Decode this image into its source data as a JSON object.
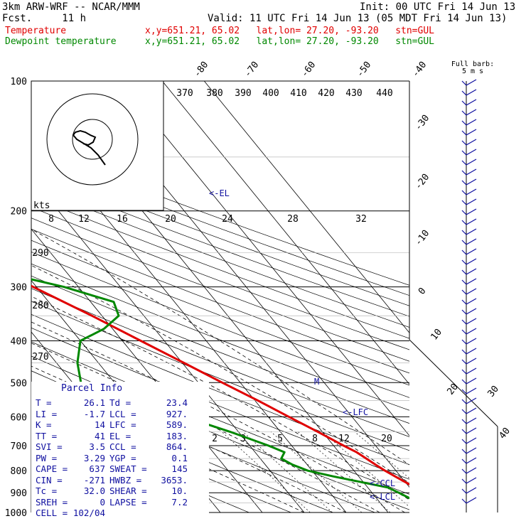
{
  "header": {
    "model": "3km ARW-WRF -- NCAR/MMM",
    "init": "Init: 00 UTC Fri 14 Jun 13",
    "fcst": "Fcst.     11 h",
    "valid": "Valid: 11 UTC Fri 14 Jun 13 (05 MDT Fri 14 Jun 13)",
    "temp_name": "Temperature",
    "temp_info": "x,y=651.21, 65.02   lat,lon= 27.20, -93.20   stn=GUL",
    "dew_name": "Dewpoint temperature",
    "dew_info": "x,y=651.21, 65.02   lat,lon= 27.20, -93.20   stn=GUL"
  },
  "barb_title": "Full barb:",
  "barb_unit": "5 m s",
  "hodo_label": "kts",
  "hodo_ring_labels": [
    "8",
    "12",
    "16",
    "20",
    "24",
    "28",
    "32"
  ],
  "colors": {
    "temperature": "#e00000",
    "dewpoint": "#008800",
    "labels": "#1010a0"
  },
  "chart_data": {
    "type": "line",
    "pressure_levels": [
      100,
      200,
      300,
      400,
      500,
      600,
      700,
      800,
      900,
      1000
    ],
    "isotherm_labels": [
      "-80",
      "-70",
      "-60",
      "-50",
      "-40",
      "-30",
      "-20",
      "-10",
      "0",
      "10",
      "20",
      "30",
      "40"
    ],
    "theta_labels": [
      "370",
      "380",
      "390",
      "400",
      "410",
      "420",
      "430",
      "440",
      "290",
      "280",
      "270"
    ],
    "mixing_ratio_labels": [
      "2",
      "3",
      "5",
      "8",
      "12",
      "20"
    ],
    "level_labels": {
      "el": "<-EL",
      "lfc": "<-LFC",
      "ccl": "<-CCL",
      "lcl": "<-LCL",
      "m": "M"
    },
    "series": [
      {
        "name": "Temperature",
        "points": [
          [
            1000,
            26.1
          ],
          [
            975,
            25.0
          ],
          [
            950,
            23.8
          ],
          [
            925,
            22.8
          ],
          [
            900,
            22.2
          ],
          [
            875,
            21.3
          ],
          [
            850,
            20.0
          ],
          [
            825,
            18.7
          ],
          [
            800,
            17.4
          ],
          [
            775,
            16.3
          ],
          [
            750,
            15.3
          ],
          [
            725,
            14.2
          ],
          [
            700,
            12.4
          ],
          [
            650,
            8.9
          ],
          [
            600,
            4.9
          ],
          [
            550,
            0.7
          ],
          [
            500,
            -4.3
          ],
          [
            450,
            -9.6
          ],
          [
            400,
            -15.6
          ],
          [
            350,
            -22.4
          ],
          [
            300,
            -30.8
          ],
          [
            250,
            -40.5
          ],
          [
            200,
            -52.0
          ],
          [
            175,
            -58.7
          ],
          [
            150,
            -67.5
          ],
          [
            125,
            -72.5
          ],
          [
            100,
            -73.0
          ]
        ]
      },
      {
        "name": "Dewpoint temperature",
        "points": [
          [
            1000,
            23.4
          ],
          [
            975,
            22.4
          ],
          [
            950,
            20.2
          ],
          [
            925,
            17.8
          ],
          [
            900,
            16.4
          ],
          [
            875,
            14.8
          ],
          [
            850,
            9.5
          ],
          [
            825,
            4.0
          ],
          [
            800,
            -1.0
          ],
          [
            775,
            -3.5
          ],
          [
            750,
            -5.0
          ],
          [
            725,
            -3.0
          ],
          [
            700,
            -5.5
          ],
          [
            650,
            -12.0
          ],
          [
            600,
            -20.0
          ],
          [
            550,
            -30.0
          ],
          [
            500,
            -38.0
          ],
          [
            450,
            -35.0
          ],
          [
            400,
            -30.0
          ],
          [
            375,
            -22.0
          ],
          [
            350,
            -16.0
          ],
          [
            325,
            -14.5
          ],
          [
            300,
            -23.5
          ],
          [
            275,
            -37.0
          ],
          [
            250,
            -46.5
          ],
          [
            225,
            -53.5
          ],
          [
            200,
            -61.5
          ],
          [
            175,
            -67.0
          ],
          [
            150,
            -76.0
          ],
          [
            125,
            -81.0
          ],
          [
            100,
            -84.0
          ]
        ]
      }
    ],
    "parcel_info": {
      "title": "Parcel Info",
      "rows": [
        [
          "T",
          "26.1",
          "Td",
          "23.4"
        ],
        [
          "LI",
          "-1.7",
          "LCL",
          "927."
        ],
        [
          "K",
          "14",
          "LFC",
          "589."
        ],
        [
          "TT",
          "41",
          "EL",
          "183."
        ],
        [
          "SVI",
          "3.5",
          "CCL",
          "864."
        ],
        [
          "PW",
          "3.29",
          "YGP",
          "0.1"
        ],
        [
          "CAPE",
          "637",
          "SWEAT",
          "145"
        ],
        [
          "CIN",
          "-271",
          "HWBZ",
          "3653."
        ],
        [
          "Tc",
          "32.0",
          "SHEAR",
          "10."
        ],
        [
          "SREH",
          "0",
          "LAPSE",
          "7.2"
        ],
        [
          "CELL",
          "102/04",
          "",
          ""
        ]
      ]
    }
  }
}
